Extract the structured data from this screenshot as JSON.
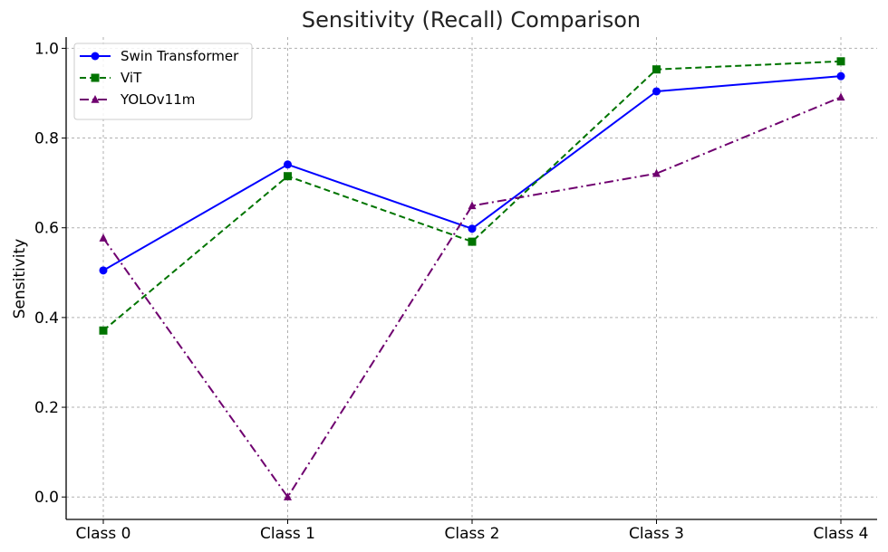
{
  "chart_data": {
    "type": "line",
    "title": "Sensitivity (Recall) Comparison",
    "xlabel": "",
    "ylabel": "Sensitivity",
    "categories": [
      "Class 0",
      "Class 1",
      "Class 2",
      "Class 3",
      "Class 4"
    ],
    "ylim": [
      -0.05,
      1.025
    ],
    "yticks": [
      0.0,
      0.2,
      0.4,
      0.6,
      0.8,
      1.0
    ],
    "ytick_labels": [
      "0.0",
      "0.2",
      "0.4",
      "0.6",
      "0.8",
      "1.0"
    ],
    "grid": true,
    "legend_position": "top-left",
    "series": [
      {
        "name": "Swin Transformer",
        "values": [
          0.505,
          0.741,
          0.598,
          0.904,
          0.938
        ],
        "color": "#0000ff",
        "line_style": "solid",
        "marker": "circle"
      },
      {
        "name": "ViT",
        "values": [
          0.371,
          0.715,
          0.569,
          0.953,
          0.971
        ],
        "color": "#007400",
        "line_style": "dashed",
        "marker": "square"
      },
      {
        "name": "YOLOv11m",
        "values": [
          0.577,
          0.0,
          0.649,
          0.721,
          0.891
        ],
        "color": "#6f006f",
        "line_style": "dashdot",
        "marker": "triangle"
      }
    ]
  }
}
